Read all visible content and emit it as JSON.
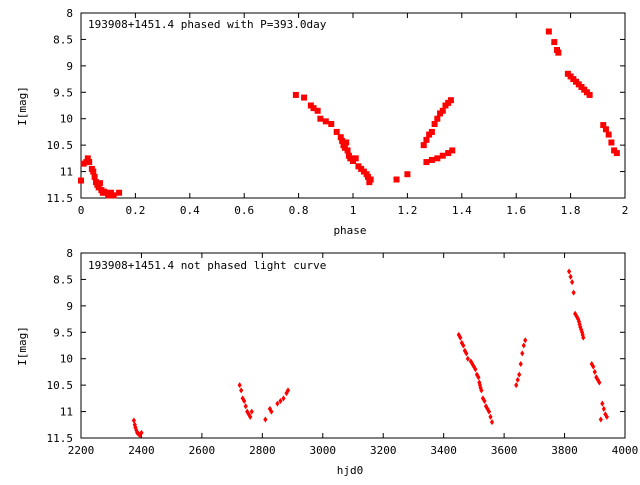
{
  "chart_data": [
    {
      "type": "scatter",
      "title": "193908+1451.4 phased with P=393.0day",
      "xlabel": "phase",
      "ylabel": "I[mag]",
      "xlim": [
        0,
        2
      ],
      "ylim": [
        11.5,
        8
      ],
      "y_inverted": true,
      "grid": false,
      "legend": "none",
      "marker": "filled-square",
      "color": "#ff0000",
      "x_ticks": [
        "0",
        "0.2",
        "0.4",
        "0.6",
        "0.8",
        "1",
        "1.2",
        "1.4",
        "1.6",
        "1.8",
        "2"
      ],
      "y_ticks": [
        "8",
        "8.5",
        "9",
        "9.5",
        "10",
        "10.5",
        "11",
        "11.5"
      ],
      "series": [
        {
          "x": [
            0.0,
            0.01,
            0.02,
            0.025,
            0.03,
            0.04,
            0.045,
            0.05,
            0.055,
            0.06,
            0.065,
            0.07,
            0.075,
            0.08,
            0.085,
            0.09,
            0.1,
            0.105,
            0.11,
            0.12,
            0.14,
            0.79,
            0.82,
            0.845,
            0.855,
            0.87,
            0.88,
            0.9,
            0.92,
            0.94,
            0.955,
            0.96,
            0.965,
            0.97,
            0.975,
            0.98,
            0.985,
            0.99,
            1.0,
            1.01,
            1.02,
            1.03,
            1.04,
            1.05,
            1.055,
            1.06,
            1.065,
            1.16,
            1.2,
            1.26,
            1.27,
            1.28,
            1.29,
            1.3,
            1.31,
            1.32,
            1.33,
            1.34,
            1.35,
            1.36,
            1.27,
            1.29,
            1.31,
            1.33,
            1.35,
            1.365,
            1.72,
            1.74,
            1.75,
            1.755,
            1.79,
            1.8,
            1.81,
            1.82,
            1.83,
            1.84,
            1.85,
            1.86,
            1.87,
            1.92,
            1.93,
            1.94,
            1.95,
            1.96,
            1.97
          ],
          "y": [
            11.17,
            10.85,
            10.82,
            10.75,
            10.82,
            10.95,
            11.0,
            11.1,
            11.2,
            11.25,
            11.3,
            11.22,
            11.35,
            11.4,
            11.38,
            11.4,
            11.45,
            11.42,
            11.4,
            11.45,
            11.4,
            9.55,
            9.6,
            9.75,
            9.8,
            9.85,
            10.0,
            10.05,
            10.1,
            10.25,
            10.35,
            10.42,
            10.5,
            10.55,
            10.45,
            10.6,
            10.7,
            10.75,
            10.8,
            10.75,
            10.9,
            10.95,
            11.0,
            11.05,
            11.1,
            11.2,
            11.15,
            11.15,
            11.05,
            10.5,
            10.4,
            10.3,
            10.25,
            10.1,
            10.0,
            9.9,
            9.85,
            9.75,
            9.7,
            9.65,
            10.82,
            10.78,
            10.75,
            10.7,
            10.65,
            10.6,
            8.35,
            8.55,
            8.7,
            8.75,
            9.15,
            9.2,
            9.25,
            9.3,
            9.35,
            9.4,
            9.45,
            9.5,
            9.55,
            10.12,
            10.2,
            10.3,
            10.45,
            10.6,
            10.65
          ]
        }
      ]
    },
    {
      "type": "scatter",
      "title": "193908+1451.4 not phased light curve",
      "xlabel": "hjd0",
      "ylabel": "I[mag]",
      "xlim": [
        2200,
        4000
      ],
      "ylim": [
        11.5,
        8
      ],
      "y_inverted": true,
      "grid": false,
      "legend": "none",
      "marker": "filled-diamond",
      "color": "#ff0000",
      "x_ticks": [
        "2200",
        "2400",
        "2600",
        "2800",
        "3000",
        "3200",
        "3400",
        "3600",
        "3800",
        "4000"
      ],
      "y_ticks": [
        "8",
        "8.5",
        "9",
        "9.5",
        "10",
        "10.5",
        "11",
        "11.5"
      ],
      "series": [
        {
          "x": [
            2375,
            2378,
            2380,
            2383,
            2386,
            2390,
            2395,
            2400,
            2725,
            2730,
            2735,
            2740,
            2745,
            2750,
            2755,
            2760,
            2765,
            2810,
            2825,
            2830,
            2850,
            2860,
            2870,
            2880,
            2885,
            3450,
            3455,
            3460,
            3465,
            3470,
            3475,
            3480,
            3490,
            3495,
            3500,
            3505,
            3510,
            3515,
            3518,
            3520,
            3522,
            3525,
            3530,
            3535,
            3540,
            3545,
            3550,
            3555,
            3560,
            3640,
            3645,
            3650,
            3655,
            3660,
            3665,
            3670,
            3815,
            3820,
            3825,
            3830,
            3835,
            3840,
            3845,
            3848,
            3850,
            3852,
            3855,
            3858,
            3860,
            3862,
            3890,
            3895,
            3900,
            3905,
            3910,
            3915,
            3920,
            3925,
            3930,
            3935,
            3940
          ],
          "y": [
            11.17,
            11.25,
            11.3,
            11.35,
            11.4,
            11.42,
            11.45,
            11.4,
            10.5,
            10.6,
            10.75,
            10.8,
            10.9,
            11.0,
            11.05,
            11.1,
            11.0,
            11.15,
            10.95,
            11.0,
            10.85,
            10.8,
            10.75,
            10.65,
            10.6,
            9.55,
            9.6,
            9.7,
            9.75,
            9.85,
            9.9,
            10.0,
            10.05,
            10.1,
            10.15,
            10.2,
            10.3,
            10.35,
            10.45,
            10.5,
            10.55,
            10.6,
            10.75,
            10.8,
            10.9,
            10.95,
            11.0,
            11.1,
            11.2,
            10.5,
            10.4,
            10.3,
            10.1,
            9.9,
            9.75,
            9.65,
            8.35,
            8.45,
            8.55,
            8.75,
            9.15,
            9.2,
            9.25,
            9.3,
            9.35,
            9.4,
            9.45,
            9.5,
            9.55,
            9.6,
            10.1,
            10.15,
            10.25,
            10.35,
            10.4,
            10.45,
            11.15,
            10.85,
            10.95,
            11.05,
            11.1
          ]
        }
      ]
    }
  ]
}
